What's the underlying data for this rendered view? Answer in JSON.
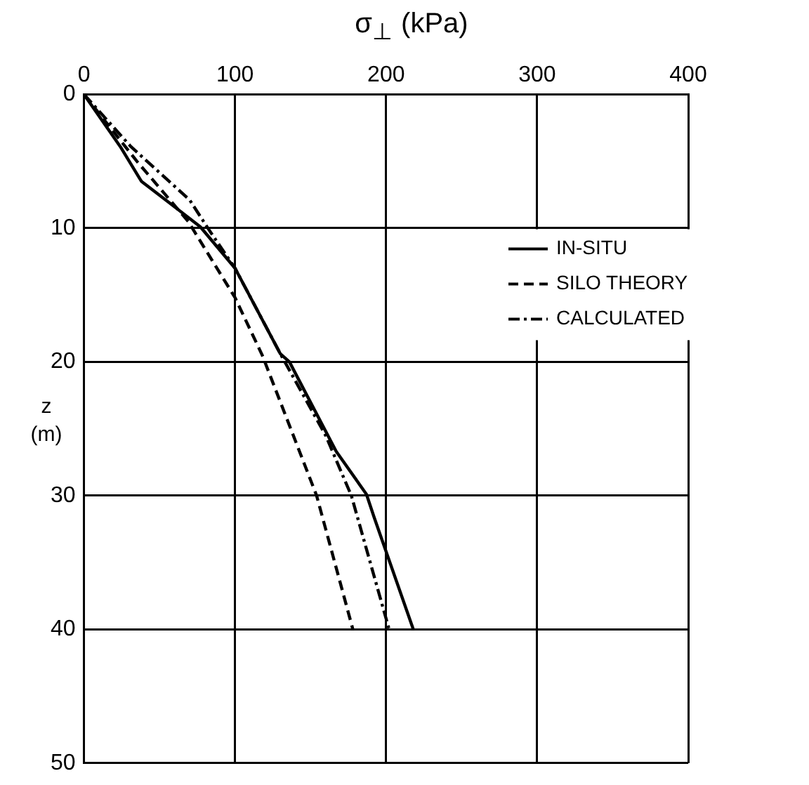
{
  "chart_data": {
    "type": "line",
    "xlabel": "σ$_{⊥}$ (kPa)",
    "ylabel": "z (m)",
    "xlim": [
      0,
      400
    ],
    "xticks": [
      0,
      100,
      200,
      300,
      400
    ],
    "ylim": [
      50,
      0
    ],
    "yticks": [
      0,
      10,
      20,
      30,
      40,
      50
    ],
    "grid": true,
    "legend": "right",
    "marker": "none",
    "series": [
      {
        "name": "IN-SITU",
        "color": "#000000",
        "line_style": "solid",
        "x": [
          0,
          24,
          38,
          53,
          77,
          100,
          130,
          136,
          167,
          187,
          192,
          218
        ],
        "values": [
          0,
          3.9,
          6.5,
          7.8,
          9.9,
          13,
          19.4,
          20,
          26.7,
          29.9,
          31.6,
          40
        ]
      },
      {
        "name": "SILO THEORY",
        "color": "#000000",
        "line_style": "dashed",
        "x": [
          0,
          35,
          69,
          100,
          118,
          154,
          178
        ],
        "values": [
          0,
          5,
          9.5,
          15.2,
          19.5,
          30,
          40
        ]
      },
      {
        "name": "CALCULATED",
        "color": "#000000",
        "line_style": "dotted",
        "x": [
          0,
          31,
          70,
          82,
          100,
          130,
          160,
          177,
          202
        ],
        "values": [
          0,
          3.9,
          7.9,
          10,
          13,
          19.4,
          25.5,
          30,
          40
        ]
      }
    ]
  }
}
